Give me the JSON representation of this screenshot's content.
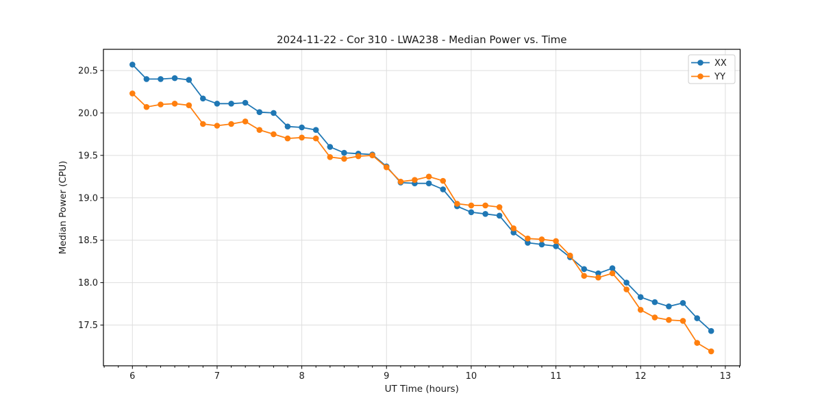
{
  "figure": {
    "background": "#ffffff",
    "grid_color": "#dedede",
    "spine_color": "#000000",
    "legend": {
      "border_color": "#cccccc",
      "fill": "#ffffff"
    }
  },
  "chart_data": {
    "type": "line",
    "title": "2024-11-22 - Cor 310 - LWA238 - Median Power vs. Time",
    "xlabel": "UT Time (hours)",
    "ylabel": "Median Power (CPU)",
    "xlim": [
      5.658,
      13.175
    ],
    "ylim": [
      17.02,
      20.75
    ],
    "grid": true,
    "legend_position": "upper right",
    "x_major_ticks": [
      6,
      7,
      8,
      9,
      10,
      11,
      12,
      13
    ],
    "x_minor_tick_step": 0.16667,
    "y_major_ticks": [
      17.5,
      18.0,
      18.5,
      19.0,
      19.5,
      20.0,
      20.5
    ],
    "x": [
      6.0,
      6.167,
      6.333,
      6.5,
      6.667,
      6.833,
      7.0,
      7.167,
      7.333,
      7.5,
      7.667,
      7.833,
      8.0,
      8.167,
      8.333,
      8.5,
      8.667,
      8.833,
      9.0,
      9.167,
      9.333,
      9.5,
      9.667,
      9.833,
      10.0,
      10.167,
      10.333,
      10.5,
      10.667,
      10.833,
      11.0,
      11.167,
      11.333,
      11.5,
      11.667,
      11.833,
      12.0,
      12.167,
      12.333,
      12.5,
      12.667,
      12.833
    ],
    "series": [
      {
        "name": "XX",
        "color": "#1f77b4",
        "values": [
          20.57,
          20.4,
          20.4,
          20.41,
          20.39,
          20.17,
          20.11,
          20.11,
          20.12,
          20.01,
          20.0,
          19.84,
          19.83,
          19.8,
          19.6,
          19.53,
          19.52,
          19.51,
          19.37,
          19.18,
          19.17,
          19.17,
          19.1,
          18.9,
          18.83,
          18.81,
          18.79,
          18.59,
          18.47,
          18.45,
          18.43,
          18.3,
          18.16,
          18.11,
          18.17,
          18.0,
          17.83,
          17.77,
          17.72,
          17.76,
          17.58,
          17.43
        ]
      },
      {
        "name": "YY",
        "color": "#ff7f0e",
        "values": [
          20.23,
          20.07,
          20.1,
          20.11,
          20.09,
          19.87,
          19.85,
          19.87,
          19.9,
          19.8,
          19.75,
          19.7,
          19.71,
          19.7,
          19.48,
          19.46,
          19.49,
          19.5,
          19.36,
          19.19,
          19.21,
          19.25,
          19.2,
          18.93,
          18.91,
          18.91,
          18.89,
          18.64,
          18.52,
          18.51,
          18.49,
          18.32,
          18.08,
          18.06,
          18.11,
          17.92,
          17.68,
          17.59,
          17.56,
          17.55,
          17.29,
          17.19
        ]
      }
    ]
  }
}
